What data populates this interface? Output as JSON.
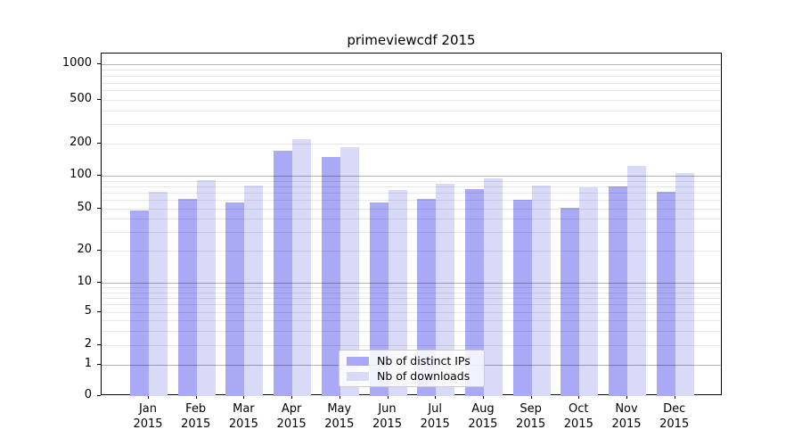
{
  "title": "primeviewcdf 2015",
  "legend": {
    "items": [
      {
        "label": "Nb of distinct IPs"
      },
      {
        "label": "Nb of downloads"
      }
    ]
  },
  "chart_data": {
    "type": "bar",
    "title": "primeviewcdf 2015",
    "categories": [
      "Jan",
      "Feb",
      "Mar",
      "Apr",
      "May",
      "Jun",
      "Jul",
      "Aug",
      "Sep",
      "Oct",
      "Nov",
      "Dec"
    ],
    "category_year": "2015",
    "series": [
      {
        "name": "Nb of distinct IPs",
        "color": "#a9a9f5",
        "values": [
          48,
          61,
          57,
          173,
          150,
          57,
          62,
          75,
          60,
          51,
          80,
          72
        ]
      },
      {
        "name": "Nb of downloads",
        "color": "#d9d9f8",
        "values": [
          72,
          91,
          82,
          220,
          185,
          74,
          84,
          94,
          82,
          78,
          124,
          106
        ]
      }
    ],
    "yscale": "symlog",
    "yticks": [
      0,
      1,
      2,
      5,
      10,
      20,
      50,
      100,
      200,
      500,
      1000
    ],
    "ylim": [
      0,
      1200
    ],
    "grid": true,
    "legend_position": "lower center"
  }
}
